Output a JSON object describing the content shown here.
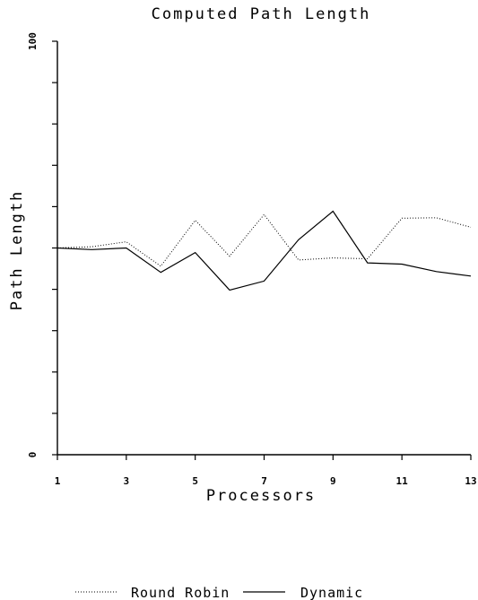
{
  "chart_data": {
    "type": "line",
    "title": "Computed Path Length",
    "xlabel": "Processors",
    "ylabel": "Path Length",
    "x": [
      1,
      2,
      3,
      4,
      5,
      6,
      7,
      8,
      9,
      10,
      11,
      12,
      13
    ],
    "xlim": [
      1,
      13
    ],
    "ylim": [
      0,
      100
    ],
    "xticks": [
      1,
      3,
      5,
      7,
      9,
      11,
      13
    ],
    "xtick_labels": [
      "1",
      "3",
      "5",
      "7",
      "9",
      "11",
      "13"
    ],
    "yticks": [
      0,
      10,
      20,
      30,
      40,
      50,
      60,
      70,
      80,
      90,
      100
    ],
    "ytick_labels": [
      "0",
      "100"
    ],
    "grid": false,
    "legend_position": "bottom",
    "series": [
      {
        "name": "Round Robin",
        "style": "dotted",
        "color": "#000000",
        "values": [
          50,
          50.3,
          51.5,
          45.6,
          56.7,
          48,
          58.1,
          47.1,
          47.6,
          47.4,
          57.2,
          57.3,
          55
        ]
      },
      {
        "name": "Dynamic",
        "style": "solid",
        "color": "#000000",
        "values": [
          50,
          49.6,
          50,
          44.1,
          48.9,
          39.8,
          42,
          52,
          58.9,
          46.4,
          46.1,
          44.3,
          43.2
        ]
      }
    ]
  }
}
